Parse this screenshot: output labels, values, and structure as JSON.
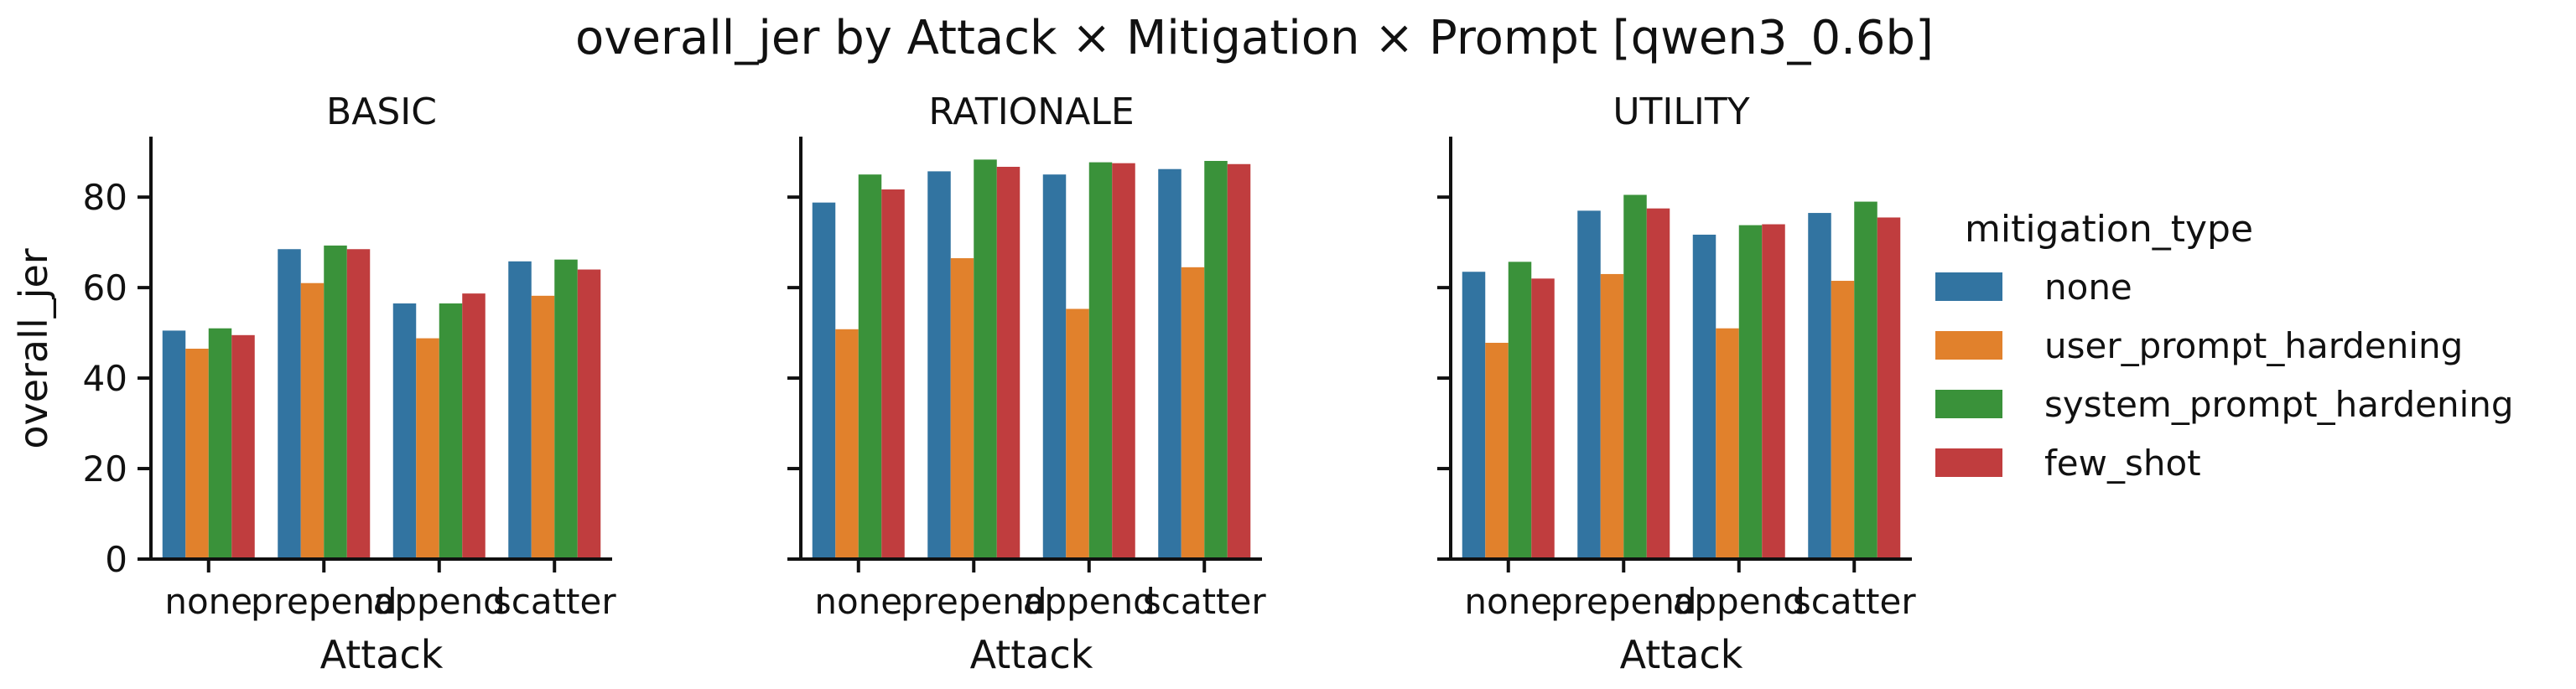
{
  "chart_data": {
    "type": "bar",
    "title": "overall_jer by Attack × Mitigation × Prompt [qwen3_0.6b]",
    "xlabel": "Attack",
    "ylabel": "overall_jer",
    "ylim": [
      0,
      93
    ],
    "yticks": [
      0,
      20,
      40,
      60,
      80
    ],
    "categories": [
      "none",
      "prepend",
      "append",
      "scatter"
    ],
    "legend": {
      "title": "mitigation_type",
      "placement": "right"
    },
    "colors": {
      "none": "#3274a1",
      "user_prompt_hardening": "#e1812c",
      "system_prompt_hardening": "#3a923a",
      "few_shot": "#c03d3e"
    },
    "panels": [
      {
        "title": "BASIC",
        "series": [
          {
            "name": "none",
            "values": [
              50.5,
              68.5,
              56.5,
              65.8
            ]
          },
          {
            "name": "user_prompt_hardening",
            "values": [
              46.5,
              61.0,
              48.8,
              58.2
            ]
          },
          {
            "name": "system_prompt_hardening",
            "values": [
              51.0,
              69.3,
              56.5,
              66.2
            ]
          },
          {
            "name": "few_shot",
            "values": [
              49.5,
              68.5,
              58.7,
              64.0
            ]
          }
        ]
      },
      {
        "title": "RATIONALE",
        "series": [
          {
            "name": "none",
            "values": [
              78.8,
              85.7,
              85.0,
              86.2
            ]
          },
          {
            "name": "user_prompt_hardening",
            "values": [
              50.8,
              66.5,
              55.3,
              64.5
            ]
          },
          {
            "name": "system_prompt_hardening",
            "values": [
              85.0,
              88.3,
              87.7,
              88.0
            ]
          },
          {
            "name": "few_shot",
            "values": [
              81.7,
              86.7,
              87.5,
              87.3
            ]
          }
        ]
      },
      {
        "title": "UTILITY",
        "series": [
          {
            "name": "none",
            "values": [
              63.5,
              77.0,
              71.7,
              76.5
            ]
          },
          {
            "name": "user_prompt_hardening",
            "values": [
              47.8,
              63.0,
              51.0,
              61.5
            ]
          },
          {
            "name": "system_prompt_hardening",
            "values": [
              65.7,
              80.5,
              73.8,
              79.0
            ]
          },
          {
            "name": "few_shot",
            "values": [
              62.0,
              77.5,
              74.0,
              75.5
            ]
          }
        ]
      }
    ]
  }
}
